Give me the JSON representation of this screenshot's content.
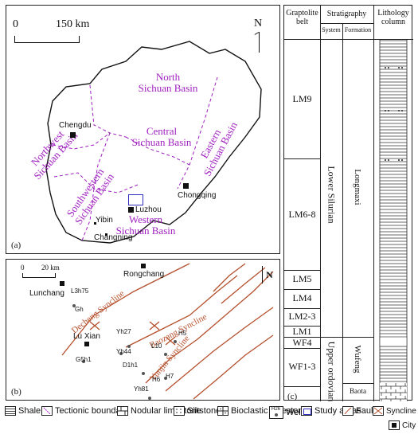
{
  "panel_a": {
    "scale_zero": "0",
    "scale_label": "150 km",
    "north": "N",
    "panel_label": "(a)",
    "basins": {
      "north": "North\nSichuan Basin",
      "northwest": "Northwest\nSichuan Basin",
      "central": "Central\nSichuan Basin",
      "eastern": "Eastern\nSichuan Basin",
      "southwestern": "Southwestern\nSichuan Basin",
      "western": "Western\nSichuan Basin"
    },
    "cities": {
      "chengdu": "Chengdu",
      "chongqing": "Chongqing",
      "luzhou": "Luzhou",
      "yibin": "Yibin",
      "changning": "Changning"
    }
  },
  "panel_b": {
    "scale_zero": "0",
    "scale_label": "20 km",
    "north": "N",
    "panel_label": "(b)",
    "cities": {
      "rongchang": "Rongchang",
      "lunchang": "Lunchang",
      "luxian": "Lu Xian"
    },
    "synclines": {
      "decheng": "Decheng Syncline",
      "baozang": "Baozang Syncline",
      "yunjin": "Yunjin Syncline"
    },
    "wells": [
      "L3h75",
      "Gh",
      "Yh27",
      "Yh44",
      "H5",
      "L10",
      "D1h1",
      "G5h1",
      "H7",
      "H6",
      "Yh81"
    ]
  },
  "panel_c": {
    "panel_label": "(c)",
    "headers": {
      "graptolite": "Graptolite\nbelt",
      "stratigraphy": "Stratigraphy",
      "system": "System",
      "formation": "Formation",
      "lithology": "Lithology\ncolumn"
    },
    "belts": [
      "LM9",
      "LM6-8",
      "LM5",
      "LM4",
      "LM2-3",
      "LM1",
      "WF4",
      "WF1-3"
    ],
    "systems": {
      "lower_silurian": "Lower Silurian",
      "upper_ordovician": "Upper ordovian"
    },
    "formations": {
      "longmaxi": "Longmaxi",
      "wufeng": "Wufeng",
      "baota": "Baota"
    }
  },
  "legend": [
    {
      "icon": "shale-icon",
      "label": "Shale"
    },
    {
      "icon": "tectonic-boundary-icon",
      "label": "Tectionic boundary"
    },
    {
      "icon": "nodular-limestone-icon",
      "label": "Nodular limestone"
    },
    {
      "icon": "siltstone-icon",
      "label": "Siltstone"
    },
    {
      "icon": "bioclastic-limestone-icon",
      "label": "Bioclastic limestone"
    },
    {
      "icon": "well-icon",
      "label": "Well",
      "sample": "H26"
    },
    {
      "icon": "study-area-icon",
      "label": "Study areas"
    },
    {
      "icon": "fault-icon",
      "label": "Fault"
    },
    {
      "icon": "syncline-icon",
      "label": "Syncline"
    },
    {
      "icon": "city-icon",
      "label": "City"
    }
  ],
  "colors": {
    "basin_text": "#a020c0",
    "fault": "#b5502c",
    "study_area": "#3030c0"
  }
}
